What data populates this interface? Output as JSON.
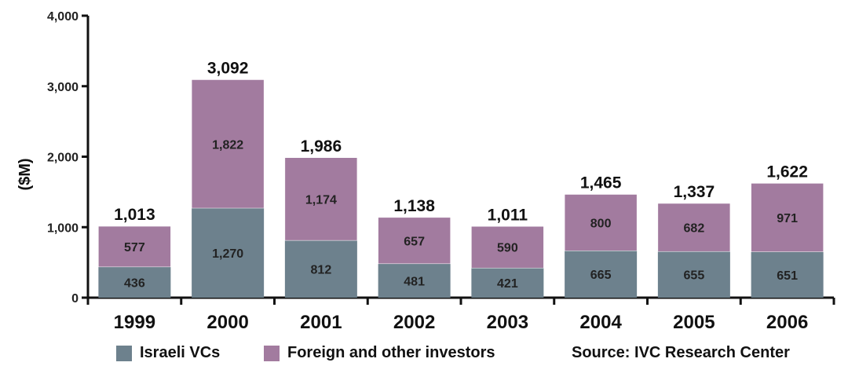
{
  "chart_data": {
    "type": "bar",
    "stacked": true,
    "categories": [
      "1999",
      "2000",
      "2001",
      "2002",
      "2003",
      "2004",
      "2005",
      "2006"
    ],
    "series": [
      {
        "name": "Israeli VCs",
        "color": "#6d818d",
        "values": [
          436,
          1270,
          812,
          481,
          421,
          665,
          655,
          651
        ]
      },
      {
        "name": "Foreign and other investors",
        "color": "#a27b9f",
        "values": [
          577,
          1822,
          1174,
          657,
          590,
          800,
          682,
          971
        ]
      }
    ],
    "totals": [
      1013,
      3092,
      1986,
      1138,
      1011,
      1465,
      1337,
      1622
    ],
    "total_labels": [
      "1,013",
      "3,092",
      "1,986",
      "1,138",
      "1,011",
      "1,465",
      "1,337",
      "1,622"
    ],
    "segment_labels": [
      [
        "436",
        "1,270",
        "812",
        "481",
        "421",
        "665",
        "655",
        "651"
      ],
      [
        "577",
        "1,822",
        "1,174",
        "657",
        "590",
        "800",
        "682",
        "971"
      ]
    ],
    "ylabel": "($M)",
    "xlabel": "",
    "ylim": [
      0,
      4000
    ],
    "yticks": [
      0,
      1000,
      2000,
      3000,
      4000
    ],
    "ytick_labels": [
      "0",
      "1,000",
      "2,000",
      "3,000",
      "4,000"
    ],
    "grid": false,
    "legend_position": "bottom"
  },
  "source_note": "Source: IVC Research Center"
}
